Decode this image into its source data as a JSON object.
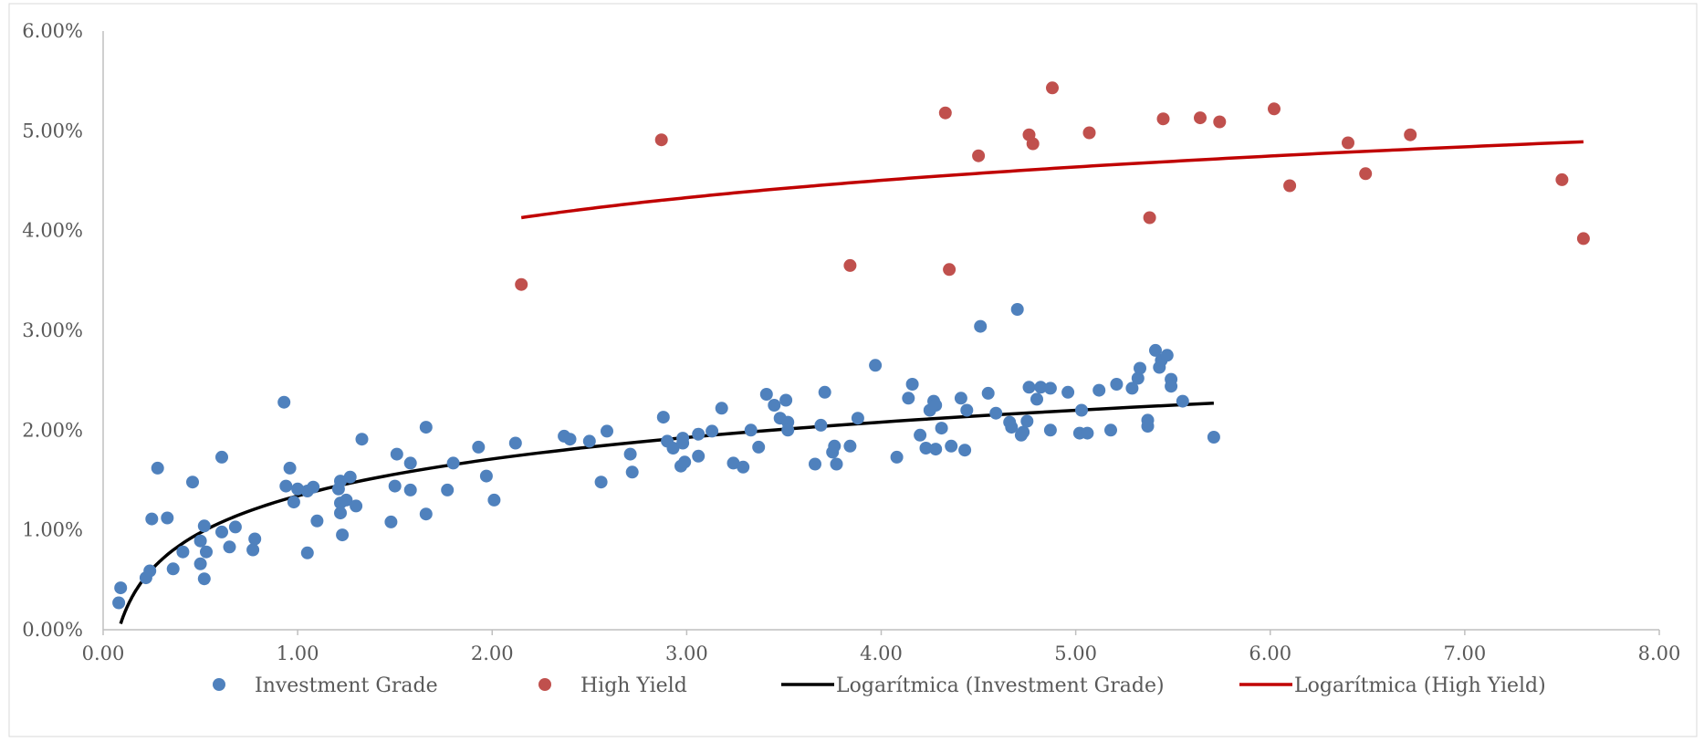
{
  "chart_data": {
    "type": "scatter",
    "title": "",
    "xlabel": "",
    "ylabel": "",
    "xlim": [
      0,
      8
    ],
    "ylim": [
      0,
      0.06
    ],
    "x_ticks": [
      "0.00",
      "1.00",
      "2.00",
      "3.00",
      "4.00",
      "5.00",
      "6.00",
      "7.00",
      "8.00"
    ],
    "y_ticks": [
      "0.00%",
      "1.00%",
      "2.00%",
      "3.00%",
      "4.00%",
      "5.00%",
      "6.00%"
    ],
    "grid": false,
    "legend_position": "bottom",
    "series": [
      {
        "name": "Investment Grade",
        "kind": "scatter",
        "color": "#4f81bd",
        "points": [
          [
            0.08,
            0.0027
          ],
          [
            0.09,
            0.0042
          ],
          [
            0.22,
            0.0052
          ],
          [
            0.24,
            0.0059
          ],
          [
            0.25,
            0.0111
          ],
          [
            0.28,
            0.0162
          ],
          [
            0.33,
            0.0112
          ],
          [
            0.36,
            0.0061
          ],
          [
            0.41,
            0.0078
          ],
          [
            0.46,
            0.0148
          ],
          [
            0.5,
            0.0089
          ],
          [
            0.5,
            0.0066
          ],
          [
            0.52,
            0.0051
          ],
          [
            0.52,
            0.0104
          ],
          [
            0.53,
            0.0078
          ],
          [
            0.61,
            0.0173
          ],
          [
            0.61,
            0.0098
          ],
          [
            0.65,
            0.0083
          ],
          [
            0.68,
            0.0103
          ],
          [
            0.77,
            0.008
          ],
          [
            0.78,
            0.0091
          ],
          [
            0.93,
            0.0228
          ],
          [
            0.94,
            0.0144
          ],
          [
            0.96,
            0.0162
          ],
          [
            0.98,
            0.0128
          ],
          [
            1.0,
            0.0141
          ],
          [
            1.05,
            0.0077
          ],
          [
            1.05,
            0.0139
          ],
          [
            1.08,
            0.0143
          ],
          [
            1.1,
            0.0109
          ],
          [
            1.21,
            0.0141
          ],
          [
            1.22,
            0.0149
          ],
          [
            1.22,
            0.0127
          ],
          [
            1.22,
            0.0117
          ],
          [
            1.23,
            0.0095
          ],
          [
            1.25,
            0.013
          ],
          [
            1.27,
            0.0153
          ],
          [
            1.3,
            0.0124
          ],
          [
            1.33,
            0.0191
          ],
          [
            1.48,
            0.0108
          ],
          [
            1.5,
            0.0144
          ],
          [
            1.51,
            0.0176
          ],
          [
            1.58,
            0.0167
          ],
          [
            1.58,
            0.014
          ],
          [
            1.66,
            0.0203
          ],
          [
            1.66,
            0.0116
          ],
          [
            1.77,
            0.014
          ],
          [
            1.8,
            0.0167
          ],
          [
            1.93,
            0.0183
          ],
          [
            1.97,
            0.0154
          ],
          [
            2.01,
            0.013
          ],
          [
            2.12,
            0.0187
          ],
          [
            2.37,
            0.0194
          ],
          [
            2.4,
            0.0191
          ],
          [
            2.5,
            0.0189
          ],
          [
            2.56,
            0.0148
          ],
          [
            2.59,
            0.0199
          ],
          [
            2.71,
            0.0176
          ],
          [
            2.72,
            0.0158
          ],
          [
            2.88,
            0.0213
          ],
          [
            2.9,
            0.0189
          ],
          [
            2.93,
            0.0182
          ],
          [
            2.97,
            0.0164
          ],
          [
            2.98,
            0.0187
          ],
          [
            2.98,
            0.0192
          ],
          [
            2.99,
            0.0168
          ],
          [
            3.06,
            0.0174
          ],
          [
            3.06,
            0.0196
          ],
          [
            3.13,
            0.0199
          ],
          [
            3.18,
            0.0222
          ],
          [
            3.24,
            0.0167
          ],
          [
            3.29,
            0.0163
          ],
          [
            3.33,
            0.02
          ],
          [
            3.37,
            0.0183
          ],
          [
            3.41,
            0.0236
          ],
          [
            3.45,
            0.0225
          ],
          [
            3.48,
            0.0212
          ],
          [
            3.51,
            0.023
          ],
          [
            3.52,
            0.0208
          ],
          [
            3.52,
            0.02
          ],
          [
            3.66,
            0.0166
          ],
          [
            3.69,
            0.0205
          ],
          [
            3.71,
            0.0238
          ],
          [
            3.75,
            0.0178
          ],
          [
            3.76,
            0.0184
          ],
          [
            3.77,
            0.0166
          ],
          [
            3.84,
            0.0184
          ],
          [
            3.88,
            0.0212
          ],
          [
            3.97,
            0.0265
          ],
          [
            4.08,
            0.0173
          ],
          [
            4.14,
            0.0232
          ],
          [
            4.16,
            0.0246
          ],
          [
            4.2,
            0.0195
          ],
          [
            4.23,
            0.0182
          ],
          [
            4.25,
            0.022
          ],
          [
            4.27,
            0.0229
          ],
          [
            4.28,
            0.0181
          ],
          [
            4.28,
            0.0225
          ],
          [
            4.31,
            0.0202
          ],
          [
            4.36,
            0.0184
          ],
          [
            4.41,
            0.0232
          ],
          [
            4.43,
            0.018
          ],
          [
            4.44,
            0.022
          ],
          [
            4.51,
            0.0304
          ],
          [
            4.55,
            0.0237
          ],
          [
            4.59,
            0.0217
          ],
          [
            4.66,
            0.0208
          ],
          [
            4.67,
            0.0203
          ],
          [
            4.7,
            0.0321
          ],
          [
            4.72,
            0.0195
          ],
          [
            4.73,
            0.0198
          ],
          [
            4.75,
            0.0209
          ],
          [
            4.76,
            0.0243
          ],
          [
            4.8,
            0.0231
          ],
          [
            4.82,
            0.0243
          ],
          [
            4.87,
            0.0242
          ],
          [
            4.87,
            0.02
          ],
          [
            4.96,
            0.0238
          ],
          [
            5.02,
            0.0197
          ],
          [
            5.03,
            0.022
          ],
          [
            5.06,
            0.0197
          ],
          [
            5.12,
            0.024
          ],
          [
            5.18,
            0.02
          ],
          [
            5.21,
            0.0246
          ],
          [
            5.29,
            0.0242
          ],
          [
            5.32,
            0.0252
          ],
          [
            5.33,
            0.0262
          ],
          [
            5.37,
            0.0204
          ],
          [
            5.37,
            0.021
          ],
          [
            5.41,
            0.028
          ],
          [
            5.43,
            0.0263
          ],
          [
            5.44,
            0.027
          ],
          [
            5.47,
            0.0275
          ],
          [
            5.49,
            0.0251
          ],
          [
            5.49,
            0.0244
          ],
          [
            5.55,
            0.0229
          ],
          [
            5.71,
            0.0193
          ]
        ]
      },
      {
        "name": "High Yield",
        "kind": "scatter",
        "color": "#c0504d",
        "points": [
          [
            2.15,
            0.0346
          ],
          [
            2.87,
            0.0491
          ],
          [
            3.84,
            0.0365
          ],
          [
            4.33,
            0.0518
          ],
          [
            4.35,
            0.0361
          ],
          [
            4.5,
            0.0475
          ],
          [
            4.76,
            0.0496
          ],
          [
            4.78,
            0.0487
          ],
          [
            4.88,
            0.0543
          ],
          [
            5.07,
            0.0498
          ],
          [
            5.38,
            0.0413
          ],
          [
            5.45,
            0.0512
          ],
          [
            5.64,
            0.0513
          ],
          [
            5.74,
            0.0509
          ],
          [
            6.02,
            0.0522
          ],
          [
            6.1,
            0.0445
          ],
          [
            6.4,
            0.0488
          ],
          [
            6.49,
            0.0457
          ],
          [
            6.72,
            0.0496
          ],
          [
            7.5,
            0.0451
          ],
          [
            7.61,
            0.0392
          ]
        ]
      },
      {
        "name": "Logarítmica (Investment Grade)",
        "kind": "trendline",
        "color": "#000000",
        "x_range": [
          0.09,
          5.71
        ],
        "y_range": [
          0.0006,
          0.0227
        ],
        "y_at_x1": 0.0132
      },
      {
        "name": "Logarítmica (High Yield)",
        "kind": "trendline",
        "color": "#c00000",
        "x_range": [
          2.15,
          7.61
        ],
        "y_range": [
          0.0413,
          0.0489
        ]
      }
    ]
  }
}
